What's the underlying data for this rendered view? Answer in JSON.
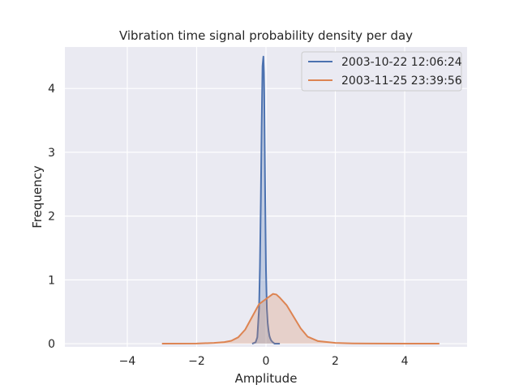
{
  "chart_data": {
    "type": "area",
    "title": "Vibration time signal probability density per day",
    "xlabel": "Amplitude",
    "ylabel": "Frequency",
    "xlim": [
      -5.8,
      5.8
    ],
    "ylim": [
      -0.05,
      4.65
    ],
    "xticks": [
      -4,
      -2,
      0,
      2,
      4
    ],
    "xtick_labels": [
      "−4",
      "−2",
      "0",
      "2",
      "4"
    ],
    "yticks": [
      0,
      1,
      2,
      3,
      4
    ],
    "ytick_labels": [
      "0",
      "1",
      "2",
      "3",
      "4"
    ],
    "grid": true,
    "legend_position": "top-right",
    "series": [
      {
        "name": "2003-10-22 12:06:24",
        "color": "#4c72b0",
        "x": [
          -0.4,
          -0.3,
          -0.25,
          -0.2,
          -0.175,
          -0.15,
          -0.125,
          -0.1,
          -0.075,
          -0.06,
          -0.05,
          -0.04,
          -0.025,
          -0.01,
          0.0,
          0.025,
          0.05,
          0.075,
          0.1,
          0.125,
          0.15,
          0.2,
          0.25,
          0.3,
          0.4
        ],
        "y": [
          0.0,
          0.02,
          0.1,
          0.55,
          1.2,
          2.2,
          3.4,
          4.35,
          4.5,
          4.25,
          3.9,
          3.3,
          2.4,
          1.6,
          1.15,
          0.55,
          0.32,
          0.2,
          0.12,
          0.08,
          0.05,
          0.02,
          0.0,
          0.0,
          0.0
        ]
      },
      {
        "name": "2003-11-25 23:39:56",
        "color": "#dd8452",
        "x": [
          -3.0,
          -2.0,
          -1.5,
          -1.2,
          -1.0,
          -0.8,
          -0.6,
          -0.4,
          -0.2,
          0.0,
          0.1,
          0.2,
          0.3,
          0.4,
          0.6,
          0.8,
          1.0,
          1.2,
          1.5,
          2.0,
          2.5,
          3.0,
          4.0,
          5.0
        ],
        "y": [
          0.0,
          0.003,
          0.012,
          0.025,
          0.045,
          0.1,
          0.22,
          0.42,
          0.62,
          0.7,
          0.74,
          0.78,
          0.77,
          0.72,
          0.6,
          0.42,
          0.24,
          0.11,
          0.04,
          0.012,
          0.004,
          0.002,
          0.001,
          0.0
        ]
      }
    ]
  }
}
